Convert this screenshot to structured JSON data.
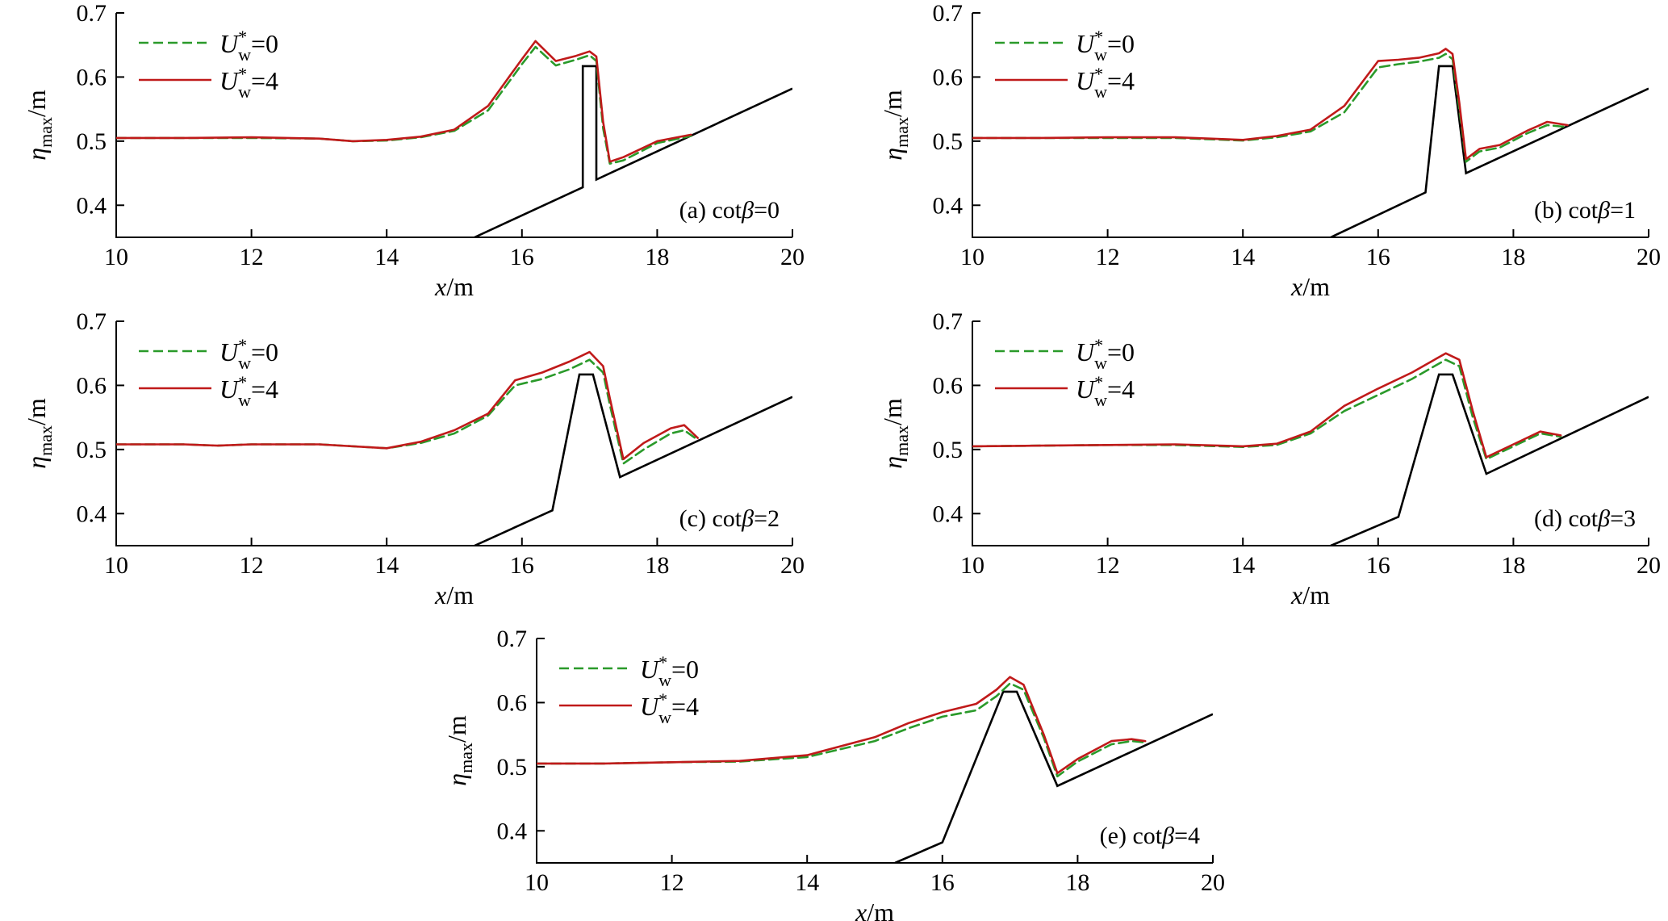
{
  "colors": {
    "series_0": "#2a9a2a",
    "series_4": "#c01a1a",
    "bathymetry": "#000000"
  },
  "chart_data": [
    {
      "type": "line",
      "panel_label_prefix": "(a) cot",
      "panel_label_beta": "β",
      "panel_label_value": "=0",
      "xlabel_var": "x",
      "xlabel_unit": "/m",
      "ylabel_var": "η",
      "ylabel_sub": "max",
      "ylabel_unit": "/m",
      "xlim": [
        10,
        20
      ],
      "ylim": [
        0.35,
        0.7
      ],
      "xticks": [
        "10",
        "12",
        "14",
        "16",
        "18",
        "20"
      ],
      "yticks": [
        "0.4",
        "0.5",
        "0.6",
        "0.7"
      ],
      "legend": {
        "position": "top-left",
        "entries": [
          {
            "base": "U",
            "sup": "*",
            "sub": "w",
            "value": "=0",
            "style": "dashed"
          },
          {
            "base": "U",
            "sup": "*",
            "sub": "w",
            "value": "=4",
            "style": "solid"
          }
        ]
      },
      "bathymetry": {
        "x": [
          15.3,
          16.9,
          16.9,
          17.1,
          17.1,
          20.0
        ],
        "y": [
          0.35,
          0.428,
          0.617,
          0.617,
          0.44,
          0.582
        ]
      },
      "series": [
        {
          "x": [
            10,
            11,
            12,
            13,
            13.5,
            14,
            14.5,
            15,
            15.5,
            16.0,
            16.2,
            16.5,
            16.8,
            17.0,
            17.1,
            17.2,
            17.3,
            17.5,
            18.0,
            18.5
          ],
          "y": [
            0.505,
            0.505,
            0.505,
            0.504,
            0.5,
            0.501,
            0.506,
            0.516,
            0.548,
            0.62,
            0.647,
            0.618,
            0.627,
            0.634,
            0.625,
            0.52,
            0.465,
            0.47,
            0.497,
            0.508
          ]
        },
        {
          "x": [
            10,
            11,
            12,
            13,
            13.5,
            14,
            14.5,
            15,
            15.5,
            16.0,
            16.2,
            16.5,
            16.8,
            17.0,
            17.1,
            17.2,
            17.3,
            17.5,
            18.0,
            18.5
          ],
          "y": [
            0.505,
            0.505,
            0.506,
            0.504,
            0.5,
            0.502,
            0.507,
            0.518,
            0.555,
            0.628,
            0.656,
            0.625,
            0.633,
            0.64,
            0.632,
            0.53,
            0.468,
            0.475,
            0.5,
            0.51
          ]
        }
      ]
    },
    {
      "type": "line",
      "panel_label_prefix": "(b) cot",
      "panel_label_beta": "β",
      "panel_label_value": "=1",
      "xlabel_var": "x",
      "xlabel_unit": "/m",
      "ylabel_var": "η",
      "ylabel_sub": "max",
      "ylabel_unit": "/m",
      "xlim": [
        10,
        20
      ],
      "ylim": [
        0.35,
        0.7
      ],
      "xticks": [
        "10",
        "12",
        "14",
        "16",
        "18",
        "20"
      ],
      "yticks": [
        "0.4",
        "0.5",
        "0.6",
        "0.7"
      ],
      "legend": {
        "position": "top-left",
        "entries": [
          {
            "base": "U",
            "sup": "*",
            "sub": "w",
            "value": "=0",
            "style": "dashed"
          },
          {
            "base": "U",
            "sup": "*",
            "sub": "w",
            "value": "=4",
            "style": "solid"
          }
        ]
      },
      "bathymetry": {
        "x": [
          15.3,
          16.7,
          16.9,
          17.1,
          17.3,
          20.0
        ],
        "y": [
          0.35,
          0.42,
          0.617,
          0.617,
          0.45,
          0.582
        ]
      },
      "series": [
        {
          "x": [
            10,
            11,
            12,
            13,
            14,
            14.5,
            15,
            15.5,
            16.0,
            16.3,
            16.6,
            16.9,
            17.0,
            17.1,
            17.2,
            17.3,
            17.5,
            17.8,
            18.2,
            18.5,
            18.8
          ],
          "y": [
            0.505,
            0.505,
            0.505,
            0.505,
            0.501,
            0.506,
            0.515,
            0.545,
            0.615,
            0.62,
            0.624,
            0.63,
            0.636,
            0.628,
            0.55,
            0.468,
            0.484,
            0.49,
            0.512,
            0.525,
            0.522
          ]
        },
        {
          "x": [
            10,
            11,
            12,
            13,
            14,
            14.5,
            15,
            15.5,
            16.0,
            16.3,
            16.6,
            16.9,
            17.0,
            17.1,
            17.2,
            17.3,
            17.5,
            17.8,
            18.2,
            18.5,
            18.8
          ],
          "y": [
            0.505,
            0.505,
            0.506,
            0.506,
            0.502,
            0.508,
            0.518,
            0.555,
            0.625,
            0.627,
            0.63,
            0.637,
            0.644,
            0.636,
            0.56,
            0.472,
            0.488,
            0.494,
            0.516,
            0.53,
            0.525
          ]
        }
      ]
    },
    {
      "type": "line",
      "panel_label_prefix": "(c) cot",
      "panel_label_beta": "β",
      "panel_label_value": "=2",
      "xlabel_var": "x",
      "xlabel_unit": "/m",
      "ylabel_var": "η",
      "ylabel_sub": "max",
      "ylabel_unit": "/m",
      "xlim": [
        10,
        20
      ],
      "ylim": [
        0.35,
        0.7
      ],
      "xticks": [
        "10",
        "12",
        "14",
        "16",
        "18",
        "20"
      ],
      "yticks": [
        "0.4",
        "0.5",
        "0.6",
        "0.7"
      ],
      "legend": {
        "position": "top-left",
        "entries": [
          {
            "base": "U",
            "sup": "*",
            "sub": "w",
            "value": "=0",
            "style": "dashed"
          },
          {
            "base": "U",
            "sup": "*",
            "sub": "w",
            "value": "=4",
            "style": "solid"
          }
        ]
      },
      "bathymetry": {
        "x": [
          15.3,
          16.45,
          16.85,
          17.05,
          17.45,
          20.0
        ],
        "y": [
          0.35,
          0.405,
          0.617,
          0.617,
          0.457,
          0.582
        ]
      },
      "series": [
        {
          "x": [
            10,
            11,
            11.5,
            12,
            13,
            14,
            14.5,
            15,
            15.5,
            15.9,
            16.3,
            16.7,
            17.0,
            17.2,
            17.3,
            17.5,
            17.8,
            18.2,
            18.4,
            18.6
          ],
          "y": [
            0.508,
            0.508,
            0.506,
            0.508,
            0.508,
            0.502,
            0.51,
            0.525,
            0.553,
            0.6,
            0.61,
            0.625,
            0.64,
            0.62,
            0.57,
            0.478,
            0.5,
            0.525,
            0.53,
            0.515
          ]
        },
        {
          "x": [
            10,
            11,
            11.5,
            12,
            13,
            14,
            14.5,
            15,
            15.5,
            15.9,
            16.3,
            16.7,
            17.0,
            17.2,
            17.3,
            17.5,
            17.8,
            18.2,
            18.4,
            18.6
          ],
          "y": [
            0.508,
            0.508,
            0.506,
            0.508,
            0.508,
            0.502,
            0.512,
            0.53,
            0.556,
            0.608,
            0.62,
            0.637,
            0.652,
            0.63,
            0.58,
            0.485,
            0.51,
            0.533,
            0.538,
            0.518
          ]
        }
      ]
    },
    {
      "type": "line",
      "panel_label_prefix": "(d) cot",
      "panel_label_beta": "β",
      "panel_label_value": "=3",
      "xlabel_var": "x",
      "xlabel_unit": "/m",
      "ylabel_var": "η",
      "ylabel_sub": "max",
      "ylabel_unit": "/m",
      "xlim": [
        10,
        20
      ],
      "ylim": [
        0.35,
        0.7
      ],
      "xticks": [
        "10",
        "12",
        "14",
        "16",
        "18",
        "20"
      ],
      "yticks": [
        "0.4",
        "0.5",
        "0.6",
        "0.7"
      ],
      "legend": {
        "position": "top-left",
        "entries": [
          {
            "base": "U",
            "sup": "*",
            "sub": "w",
            "value": "=0",
            "style": "dashed"
          },
          {
            "base": "U",
            "sup": "*",
            "sub": "w",
            "value": "=4",
            "style": "solid"
          }
        ]
      },
      "bathymetry": {
        "x": [
          15.3,
          16.3,
          16.9,
          17.1,
          17.6,
          20.0
        ],
        "y": [
          0.35,
          0.395,
          0.617,
          0.617,
          0.462,
          0.582
        ]
      },
      "series": [
        {
          "x": [
            10,
            11,
            12,
            13,
            14,
            14.5,
            15,
            15.5,
            16.0,
            16.5,
            17.0,
            17.2,
            17.4,
            17.6,
            18.0,
            18.4,
            18.7
          ],
          "y": [
            0.505,
            0.506,
            0.507,
            0.507,
            0.504,
            0.507,
            0.525,
            0.56,
            0.585,
            0.61,
            0.64,
            0.63,
            0.55,
            0.485,
            0.505,
            0.525,
            0.52
          ]
        },
        {
          "x": [
            10,
            11,
            12,
            13,
            14,
            14.5,
            15,
            15.5,
            16.0,
            16.5,
            17.0,
            17.2,
            17.4,
            17.6,
            18.0,
            18.4,
            18.7
          ],
          "y": [
            0.505,
            0.506,
            0.507,
            0.508,
            0.505,
            0.509,
            0.528,
            0.568,
            0.595,
            0.62,
            0.65,
            0.64,
            0.56,
            0.488,
            0.508,
            0.528,
            0.522
          ]
        }
      ]
    },
    {
      "type": "line",
      "panel_label_prefix": "(e) cot",
      "panel_label_beta": "β",
      "panel_label_value": "=4",
      "xlabel_var": "x",
      "xlabel_unit": "/m",
      "ylabel_var": "η",
      "ylabel_sub": "max",
      "ylabel_unit": "/m",
      "xlim": [
        10,
        20
      ],
      "ylim": [
        0.35,
        0.7
      ],
      "xticks": [
        "10",
        "12",
        "14",
        "16",
        "18",
        "20"
      ],
      "yticks": [
        "0.4",
        "0.5",
        "0.6",
        "0.7"
      ],
      "legend": {
        "position": "top-left",
        "entries": [
          {
            "base": "U",
            "sup": "*",
            "sub": "w",
            "value": "=0",
            "style": "dashed"
          },
          {
            "base": "U",
            "sup": "*",
            "sub": "w",
            "value": "=4",
            "style": "solid"
          }
        ]
      },
      "bathymetry": {
        "x": [
          15.3,
          16.0,
          16.9,
          17.1,
          17.7,
          20.0
        ],
        "y": [
          0.35,
          0.382,
          0.617,
          0.617,
          0.47,
          0.582
        ]
      },
      "series": [
        {
          "x": [
            10,
            11,
            12,
            13,
            14,
            15,
            15.5,
            16.0,
            16.5,
            16.8,
            17.0,
            17.2,
            17.5,
            17.7,
            18.0,
            18.5,
            18.8,
            19.0
          ],
          "y": [
            0.505,
            0.505,
            0.507,
            0.508,
            0.515,
            0.54,
            0.56,
            0.578,
            0.588,
            0.61,
            0.63,
            0.62,
            0.545,
            0.485,
            0.508,
            0.535,
            0.54,
            0.538
          ]
        },
        {
          "x": [
            10,
            11,
            12,
            13,
            14,
            15,
            15.5,
            16.0,
            16.5,
            16.8,
            17.0,
            17.2,
            17.5,
            17.7,
            18.0,
            18.5,
            18.8,
            19.0
          ],
          "y": [
            0.505,
            0.505,
            0.507,
            0.509,
            0.518,
            0.546,
            0.568,
            0.585,
            0.598,
            0.62,
            0.64,
            0.628,
            0.55,
            0.49,
            0.512,
            0.54,
            0.543,
            0.54
          ]
        }
      ]
    }
  ]
}
